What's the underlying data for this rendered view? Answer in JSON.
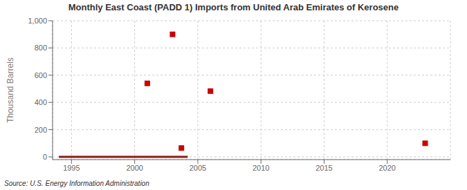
{
  "chart_data": {
    "type": "scatter",
    "title": "Monthly East Coast (PADD 1) Imports from United Arab Emirates of Kerosene",
    "y_label": "Thousand Barrels",
    "annotation": "Source: U.S. Energy Information Administration",
    "xlim": [
      1993.5,
      2025
    ],
    "ylim": [
      -20,
      1000
    ],
    "xticks": [
      1995,
      2000,
      2005,
      2010,
      2015,
      2020
    ],
    "yticks": [
      0,
      200,
      400,
      600,
      800,
      {
        "value": 1000,
        "label": "1,000"
      }
    ],
    "grid": true,
    "series": [
      {
        "type": "scatter",
        "color": "#cc0000",
        "marker": "square",
        "x": [
          2001,
          2003,
          2003.7,
          2006,
          2023
        ],
        "values": [
          540,
          900,
          65,
          483,
          100
        ]
      },
      {
        "type": "line",
        "color": "#8b1a1a",
        "x": [
          1994,
          2004.2
        ],
        "values": [
          0,
          0
        ]
      }
    ]
  }
}
